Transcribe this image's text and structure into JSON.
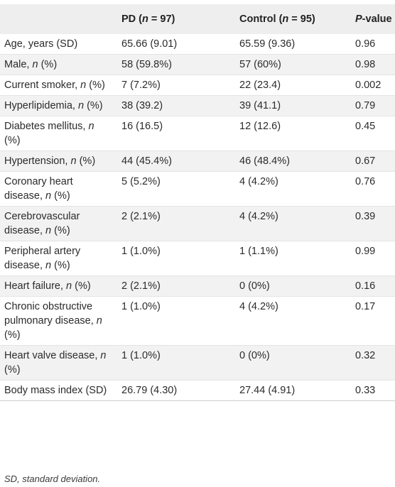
{
  "table": {
    "headers": [
      {
        "pre": "",
        "main": "",
        "post": ""
      },
      {
        "pre": "PD (",
        "main": "n",
        "post": " = 97)"
      },
      {
        "pre": "Control (",
        "main": "n",
        "post": " = 95)"
      },
      {
        "pre": "",
        "main": "P",
        "post": "-value"
      }
    ],
    "rows": [
      {
        "label_pre": "Age, years (SD)",
        "label_n": "",
        "label_post": "",
        "pd": "65.66 (9.01)",
        "control": "65.59 (9.36)",
        "p": "0.96"
      },
      {
        "label_pre": "Male, ",
        "label_n": "n",
        "label_post": " (%)",
        "pd": "58 (59.8%)",
        "control": "57 (60%)",
        "p": "0.98"
      },
      {
        "label_pre": "Current smoker, ",
        "label_n": "n",
        "label_post": " (%)",
        "pd": "7 (7.2%)",
        "control": "22 (23.4)",
        "p": "0.002"
      },
      {
        "label_pre": "Hyperlipidemia, ",
        "label_n": "n",
        "label_post": " (%)",
        "pd": "38 (39.2)",
        "control": "39 (41.1)",
        "p": "0.79"
      },
      {
        "label_pre": "Diabetes mellitus, ",
        "label_n": "n",
        "label_post": " (%)",
        "pd": "16 (16.5)",
        "control": "12 (12.6)",
        "p": "0.45"
      },
      {
        "label_pre": "Hypertension, ",
        "label_n": "n",
        "label_post": " (%)",
        "pd": "44 (45.4%)",
        "control": "46 (48.4%)",
        "p": "0.67"
      },
      {
        "label_pre": "Coronary heart disease, ",
        "label_n": "n",
        "label_post": " (%)",
        "pd": "5 (5.2%)",
        "control": "4 (4.2%)",
        "p": "0.76"
      },
      {
        "label_pre": "Cerebrovascular disease, ",
        "label_n": "n",
        "label_post": " (%)",
        "pd": "2 (2.1%)",
        "control": "4 (4.2%)",
        "p": "0.39"
      },
      {
        "label_pre": "Peripheral artery disease, ",
        "label_n": "n",
        "label_post": " (%)",
        "pd": "1 (1.0%)",
        "control": "1 (1.1%)",
        "p": "0.99"
      },
      {
        "label_pre": "Heart failure, ",
        "label_n": "n",
        "label_post": " (%)",
        "pd": "2 (2.1%)",
        "control": "0 (0%)",
        "p": "0.16"
      },
      {
        "label_pre": "Chronic obstructive pulmonary disease, ",
        "label_n": "n",
        "label_post": " (%)",
        "pd": "1 (1.0%)",
        "control": "4 (4.2%)",
        "p": "0.17"
      },
      {
        "label_pre": "Heart valve disease, ",
        "label_n": "n",
        "label_post": " (%)",
        "pd": "1 (1.0%)",
        "control": "0 (0%)",
        "p": "0.32"
      },
      {
        "label_pre": "Body mass index (SD)",
        "label_n": "",
        "label_post": "",
        "pd": "26.79 (4.30)",
        "control": "27.44 (4.91)",
        "p": "0.33"
      }
    ]
  },
  "footnote": "SD, standard deviation."
}
